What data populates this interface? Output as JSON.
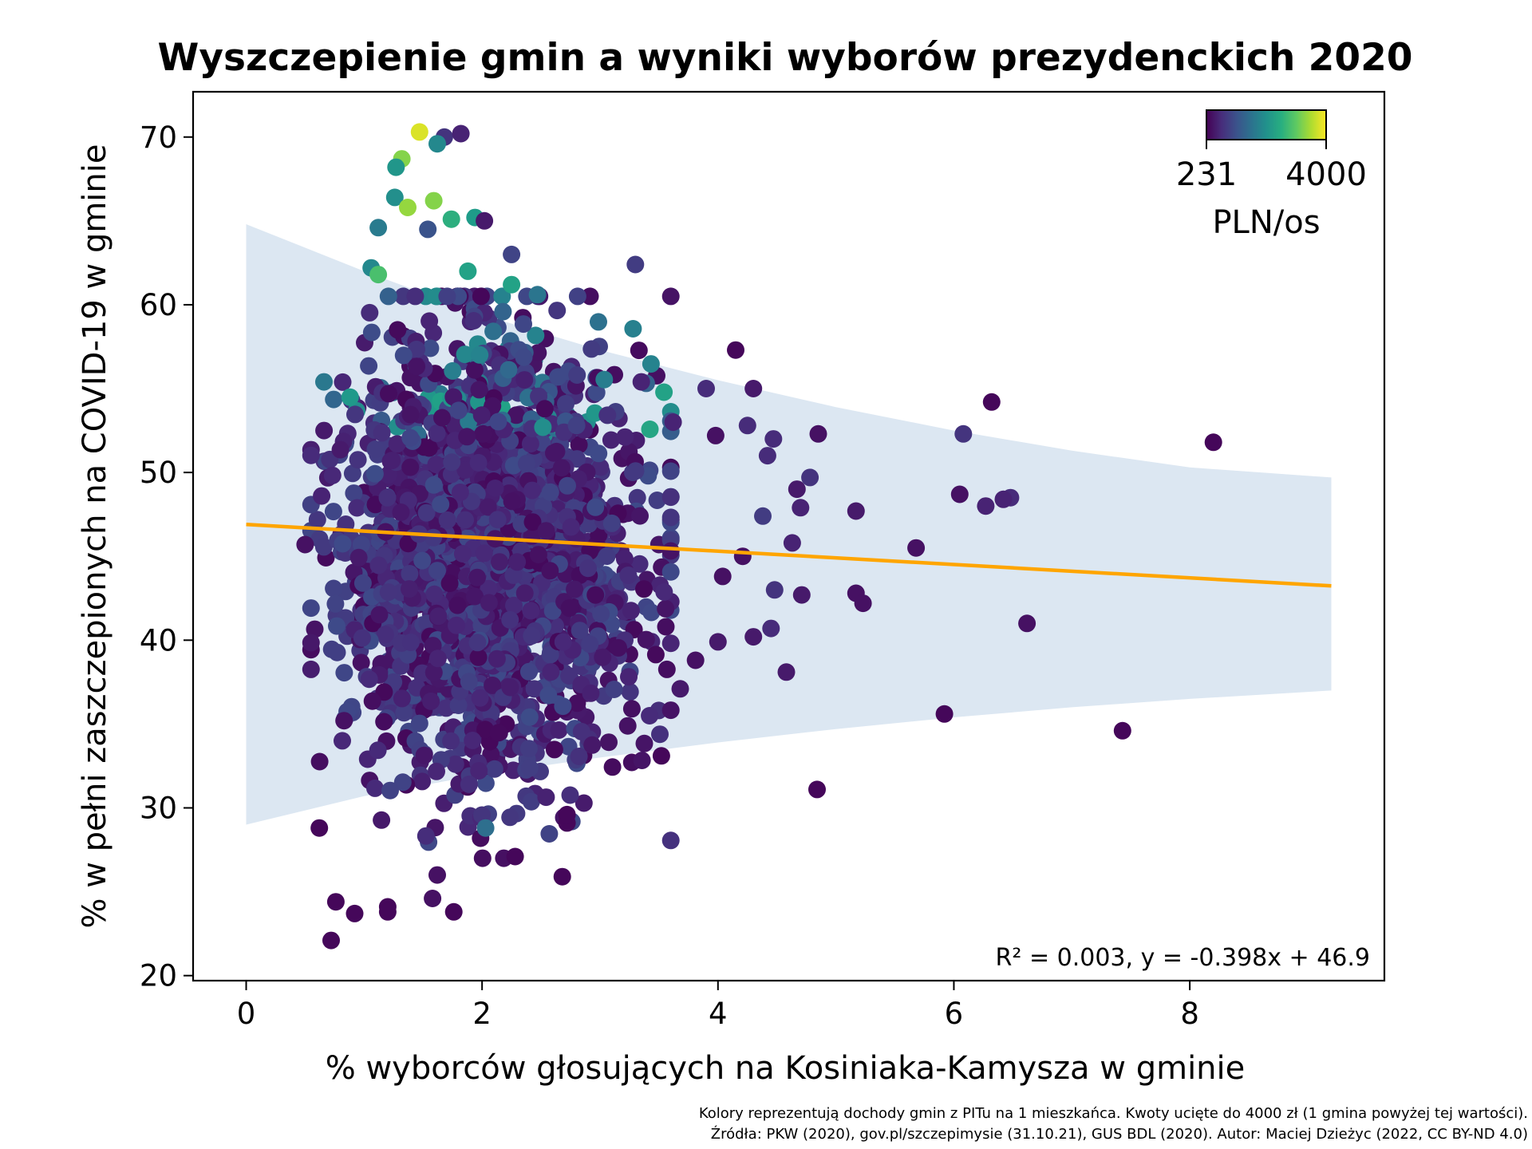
{
  "chart_data": {
    "type": "scatter",
    "title": "Wyszczepienie gmin a wyniki wyborów prezydenckich 2020",
    "xlabel": "% wyborców głosujących na Kosiniaka-Kamysza w gminie",
    "ylabel": "% w pełni zaszczepionych na COVID-19 w gminie",
    "xlim": [
      -0.45,
      9.65
    ],
    "ylim": [
      19.7,
      72.7
    ],
    "x_ticks": [
      0,
      2,
      4,
      6,
      8
    ],
    "y_ticks": [
      20,
      30,
      40,
      50,
      60,
      70
    ],
    "grid": false,
    "regression": {
      "slope": -0.398,
      "intercept": 46.9,
      "x_range": [
        0,
        9.2
      ],
      "color": "#ffa500",
      "annotation": "R² = 0.003, y = -0.398x + 46.9"
    },
    "prediction_band": {
      "x": [
        0,
        1,
        2,
        3,
        4,
        5,
        6,
        7,
        8,
        9.2
      ],
      "upper": [
        64.8,
        62.0,
        59.4,
        57.3,
        55.5,
        53.9,
        52.5,
        51.3,
        50.3,
        49.7
      ],
      "lower": [
        29.0,
        30.7,
        32.0,
        33.0,
        33.9,
        34.7,
        35.4,
        36.0,
        36.5,
        37.0
      ],
      "color": "#dce7f2"
    },
    "colorbar": {
      "min": 231,
      "max": 4000,
      "min_label": "231",
      "max_label": "4000",
      "label": "PLN/os",
      "colormap": "viridis"
    },
    "highlighted_points": [
      {
        "x": 1.47,
        "y": 70.3,
        "c": 3800
      },
      {
        "x": 1.68,
        "y": 70.0,
        "c": 800
      },
      {
        "x": 1.82,
        "y": 70.2,
        "c": 600
      },
      {
        "x": 1.62,
        "y": 69.6,
        "c": 2000
      },
      {
        "x": 1.32,
        "y": 68.7,
        "c": 3300
      },
      {
        "x": 1.27,
        "y": 68.2,
        "c": 2200
      },
      {
        "x": 1.26,
        "y": 66.4,
        "c": 2100
      },
      {
        "x": 1.59,
        "y": 66.2,
        "c": 3300
      },
      {
        "x": 1.37,
        "y": 65.8,
        "c": 3400
      },
      {
        "x": 1.74,
        "y": 65.1,
        "c": 2600
      },
      {
        "x": 1.94,
        "y": 65.2,
        "c": 2300
      },
      {
        "x": 2.02,
        "y": 65.0,
        "c": 500
      },
      {
        "x": 1.12,
        "y": 64.6,
        "c": 1800
      },
      {
        "x": 1.54,
        "y": 64.5,
        "c": 1200
      },
      {
        "x": 2.25,
        "y": 63.0,
        "c": 1000
      },
      {
        "x": 3.3,
        "y": 62.4,
        "c": 900
      },
      {
        "x": 1.06,
        "y": 62.2,
        "c": 2000
      },
      {
        "x": 1.12,
        "y": 61.8,
        "c": 2900
      },
      {
        "x": 1.88,
        "y": 62.0,
        "c": 2400
      },
      {
        "x": 2.25,
        "y": 61.2,
        "c": 2400
      },
      {
        "x": 2.47,
        "y": 60.6,
        "c": 1700
      },
      {
        "x": 4.15,
        "y": 57.3,
        "c": 300
      },
      {
        "x": 6.32,
        "y": 54.2,
        "c": 300
      },
      {
        "x": 3.9,
        "y": 55.0,
        "c": 700
      },
      {
        "x": 4.3,
        "y": 55.0,
        "c": 500
      },
      {
        "x": 6.08,
        "y": 52.3,
        "c": 800
      },
      {
        "x": 4.85,
        "y": 52.3,
        "c": 400
      },
      {
        "x": 8.2,
        "y": 51.8,
        "c": 300
      },
      {
        "x": 6.05,
        "y": 48.7,
        "c": 400
      },
      {
        "x": 6.48,
        "y": 48.5,
        "c": 700
      },
      {
        "x": 6.42,
        "y": 48.4,
        "c": 600
      },
      {
        "x": 6.27,
        "y": 48.0,
        "c": 600
      },
      {
        "x": 5.17,
        "y": 47.7,
        "c": 500
      },
      {
        "x": 5.68,
        "y": 45.5,
        "c": 400
      },
      {
        "x": 5.17,
        "y": 42.8,
        "c": 400
      },
      {
        "x": 5.23,
        "y": 42.2,
        "c": 400
      },
      {
        "x": 6.62,
        "y": 41.0,
        "c": 400
      },
      {
        "x": 4.58,
        "y": 38.1,
        "c": 500
      },
      {
        "x": 5.92,
        "y": 35.6,
        "c": 300
      },
      {
        "x": 7.43,
        "y": 34.6,
        "c": 300
      },
      {
        "x": 3.52,
        "y": 33.1,
        "c": 300
      },
      {
        "x": 4.84,
        "y": 31.1,
        "c": 300
      },
      {
        "x": 2.72,
        "y": 29.1,
        "c": 300
      },
      {
        "x": 2.28,
        "y": 27.1,
        "c": 300
      },
      {
        "x": 2.68,
        "y": 25.9,
        "c": 300
      },
      {
        "x": 1.62,
        "y": 26.0,
        "c": 400
      },
      {
        "x": 1.58,
        "y": 24.6,
        "c": 400
      },
      {
        "x": 0.76,
        "y": 24.4,
        "c": 300
      },
      {
        "x": 1.2,
        "y": 24.1,
        "c": 300
      },
      {
        "x": 1.2,
        "y": 23.8,
        "c": 300
      },
      {
        "x": 0.92,
        "y": 23.7,
        "c": 300
      },
      {
        "x": 1.76,
        "y": 23.8,
        "c": 300
      },
      {
        "x": 0.72,
        "y": 22.1,
        "c": 300
      },
      {
        "x": 0.5,
        "y": 45.7,
        "c": 400
      },
      {
        "x": 0.66,
        "y": 52.5,
        "c": 500
      },
      {
        "x": 0.64,
        "y": 48.6,
        "c": 600
      },
      {
        "x": 0.62,
        "y": 28.8,
        "c": 300
      },
      {
        "x": 0.83,
        "y": 35.2,
        "c": 400
      },
      {
        "x": 2.72,
        "y": 29.6,
        "c": 300
      },
      {
        "x": 2.03,
        "y": 28.8,
        "c": 1600
      },
      {
        "x": 3.35,
        "y": 55.4,
        "c": 600
      },
      {
        "x": 3.62,
        "y": 53.0,
        "c": 600
      },
      {
        "x": 3.98,
        "y": 52.2,
        "c": 400
      },
      {
        "x": 4.25,
        "y": 52.8,
        "c": 700
      },
      {
        "x": 4.47,
        "y": 52.0,
        "c": 700
      },
      {
        "x": 4.42,
        "y": 51.0,
        "c": 700
      },
      {
        "x": 4.78,
        "y": 49.7,
        "c": 800
      },
      {
        "x": 4.67,
        "y": 49.0,
        "c": 500
      },
      {
        "x": 4.38,
        "y": 47.4,
        "c": 900
      },
      {
        "x": 4.7,
        "y": 47.9,
        "c": 600
      },
      {
        "x": 4.63,
        "y": 45.8,
        "c": 600
      },
      {
        "x": 4.71,
        "y": 42.7,
        "c": 500
      },
      {
        "x": 4.48,
        "y": 43.0,
        "c": 800
      },
      {
        "x": 4.45,
        "y": 40.7,
        "c": 700
      },
      {
        "x": 4.3,
        "y": 40.2,
        "c": 500
      },
      {
        "x": 4.0,
        "y": 39.9,
        "c": 500
      },
      {
        "x": 3.81,
        "y": 38.8,
        "c": 400
      },
      {
        "x": 3.68,
        "y": 37.1,
        "c": 500
      },
      {
        "x": 4.04,
        "y": 43.8,
        "c": 400
      },
      {
        "x": 4.21,
        "y": 45.0,
        "c": 400
      }
    ],
    "dense_cluster": {
      "approx_count": 2450,
      "center_x": 1.75,
      "x_std": 0.5,
      "x_range": [
        0.55,
        3.6
      ],
      "y_mean": 45.3,
      "y_std": 6.2,
      "y_range": [
        27.0,
        60.5
      ],
      "typical_color_range": [
        300,
        1100
      ]
    },
    "footnote": [
      "Kolory reprezentują dochody gmin z PITu na 1 mieszkańca. Kwoty ucięte do 4000 zł (1 gmina powyżej tej wartości).",
      "Źródła: PKW (2020), gov.pl/szczepimysie (31.10.21), GUS BDL (2020). Autor: Maciej Dzieżyc (2022, CC BY-ND 4.0)"
    ]
  }
}
